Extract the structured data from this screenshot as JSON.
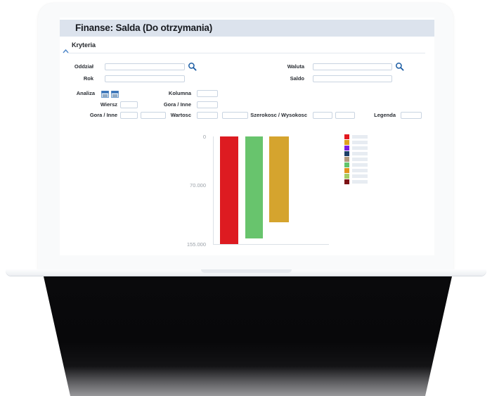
{
  "app": {
    "header": {
      "title": "Finanse: Salda (Do otrzymania)"
    },
    "criteria": {
      "label": "Kryteria",
      "collapse_icon": "chevron-up-icon"
    },
    "form": {
      "oddzial": {
        "label": "Oddział",
        "value": "",
        "search_icon": "magnifier-icon"
      },
      "rok": {
        "label": "Rok",
        "value": ""
      },
      "waluta": {
        "label": "Waluta",
        "value": "",
        "search_icon": "magnifier-icon"
      },
      "saldo": {
        "label": "Saldo",
        "value": ""
      },
      "analiza": {
        "label": "Analiza",
        "icons": [
          "calendar-icon",
          "calendar-icon"
        ]
      },
      "kolumna": {
        "label": "Kolumna",
        "value": ""
      },
      "wiersz": {
        "label": "Wiersz",
        "value": ""
      },
      "gora_inne_left": {
        "label": "Gora / Inne",
        "value1": "",
        "value2": ""
      },
      "gora_inne_mid": {
        "label": "Gora / Inne",
        "value": ""
      },
      "wartosc": {
        "label": "Wartosc",
        "value1": "",
        "value2": ""
      },
      "szerokosc_wysokosc": {
        "label": "Szerokosc / Wysokosc",
        "value1": "",
        "value2": ""
      },
      "legenda": {
        "label": "Legenda",
        "value": ""
      }
    },
    "chart_data": {
      "type": "bar",
      "orientation": "columns-hanging-from-zero",
      "title": "",
      "categories": [
        "",
        "",
        ""
      ],
      "values": [
        155000,
        147000,
        124000
      ],
      "bar_colors": [
        "#dd1b21",
        "#68c46d",
        "#d5a42e"
      ],
      "ylim": [
        0,
        155000
      ],
      "yticks": [
        {
          "value": 0,
          "label": "0"
        },
        {
          "value": 70000,
          "label": "70.000"
        },
        {
          "value": 155000,
          "label": "155.000"
        }
      ],
      "grid": false,
      "legend": {
        "position": "right",
        "items": [
          {
            "color": "#e2191f",
            "label": ""
          },
          {
            "color": "#dfa21e",
            "label": ""
          },
          {
            "color": "#7a1de4",
            "label": ""
          },
          {
            "color": "#1d3f68",
            "label": ""
          },
          {
            "color": "#b29a7d",
            "label": ""
          },
          {
            "color": "#62c56b",
            "label": ""
          },
          {
            "color": "#e2941c",
            "label": ""
          },
          {
            "color": "#a5cd66",
            "label": ""
          },
          {
            "color": "#7d1215",
            "label": ""
          }
        ]
      }
    },
    "colors": {
      "header_bg": "#dce3ed",
      "accent_blue": "#1b5ca3",
      "axis_line": "#dbe0e6",
      "tick_text": "#9aa1a8"
    }
  }
}
